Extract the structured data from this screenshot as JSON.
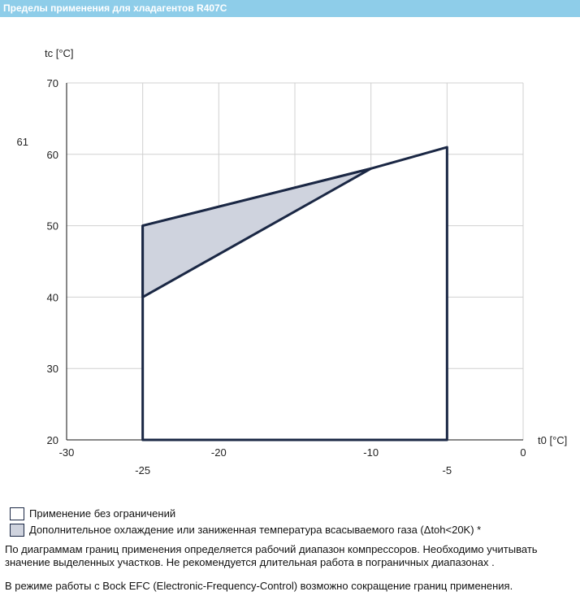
{
  "header": {
    "title": "Пределы применения для хладагентов R407C"
  },
  "chart_data": {
    "type": "area",
    "xlabel": "t0 [°C]",
    "ylabel": "tc [°C]",
    "xlim": [
      -30,
      0
    ],
    "ylim": [
      20,
      70
    ],
    "x_ticks_top": [
      -30,
      -20,
      -10,
      0
    ],
    "x_ticks_bottom": [
      -25,
      -5
    ],
    "y_ticks": [
      20,
      30,
      40,
      50,
      60,
      70
    ],
    "y_extra_label": 61,
    "grid": true,
    "series": [
      {
        "points": [
          [
            -25,
            20
          ],
          [
            -25,
            50
          ],
          [
            -10,
            58
          ],
          [
            -5,
            61
          ],
          [
            -5,
            20
          ]
        ],
        "fill": "#ffffff",
        "stroke": "#1a2744"
      },
      {
        "points": [
          [
            -25,
            40
          ],
          [
            -25,
            50
          ],
          [
            -10,
            58
          ]
        ],
        "fill": "#cfd3de",
        "stroke": "#1a2744"
      }
    ]
  },
  "legend": [
    {
      "label": "Применение без ограничений",
      "color": "#ffffff"
    },
    {
      "label": "Дополнительное охлаждение или заниженная температура всасываемого газа (Δtoh<20K) *",
      "color": "#cfd3de"
    }
  ],
  "notes": {
    "p1": "По диаграммам границ применения определяется рабочий диапазон компрессоров. Необходимо учитывать значение выделенных участков. Не рекомендуется длительная работа в пограничных диапазонах .",
    "p2": "В режиме работы с Bock EFC (Electronic-Frequency-Control) возможно сокращение границ применения."
  }
}
